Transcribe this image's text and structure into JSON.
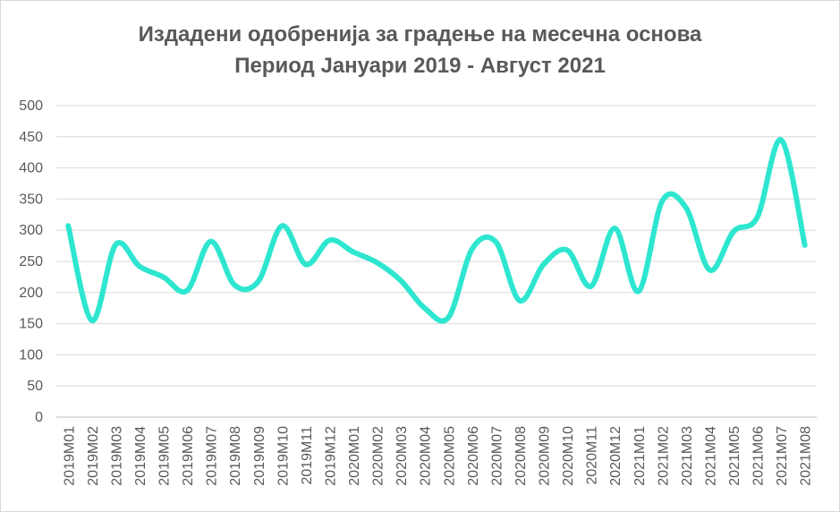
{
  "chart_data": {
    "type": "line",
    "title": "Издадени одобренија за градење на месечна основа",
    "subtitle": "Период Јануари 2019 - Август 2021",
    "xlabel": "",
    "ylabel": "",
    "ylim": [
      0,
      500
    ],
    "yticks": [
      "0",
      "50",
      "100",
      "150",
      "200",
      "250",
      "300",
      "350",
      "400",
      "450",
      "500"
    ],
    "grid": true,
    "categories": [
      "2019M01",
      "2019M02",
      "2019M03",
      "2019M04",
      "2019M05",
      "2019M06",
      "2019M07",
      "2019M08",
      "2019M09",
      "2019M10",
      "2019M11",
      "2019M12",
      "2020M01",
      "2020M02",
      "2020M03",
      "2020M04",
      "2020M05",
      "2020M06",
      "2020M07",
      "2020M08",
      "2020M09",
      "2020M10",
      "2020M11",
      "2020M12",
      "2021M01",
      "2021M02",
      "2021M03",
      "2021M04",
      "2021M05",
      "2021M06",
      "2021M07",
      "2021M08"
    ],
    "series": [
      {
        "color": "#2ee6d0",
        "values": [
          307,
          155,
          277,
          242,
          225,
          203,
          282,
          212,
          218,
          307,
          245,
          284,
          265,
          248,
          219,
          175,
          160,
          270,
          281,
          187,
          245,
          268,
          210,
          303,
          202,
          347,
          336,
          236,
          298,
          321,
          445,
          276
        ]
      }
    ]
  }
}
